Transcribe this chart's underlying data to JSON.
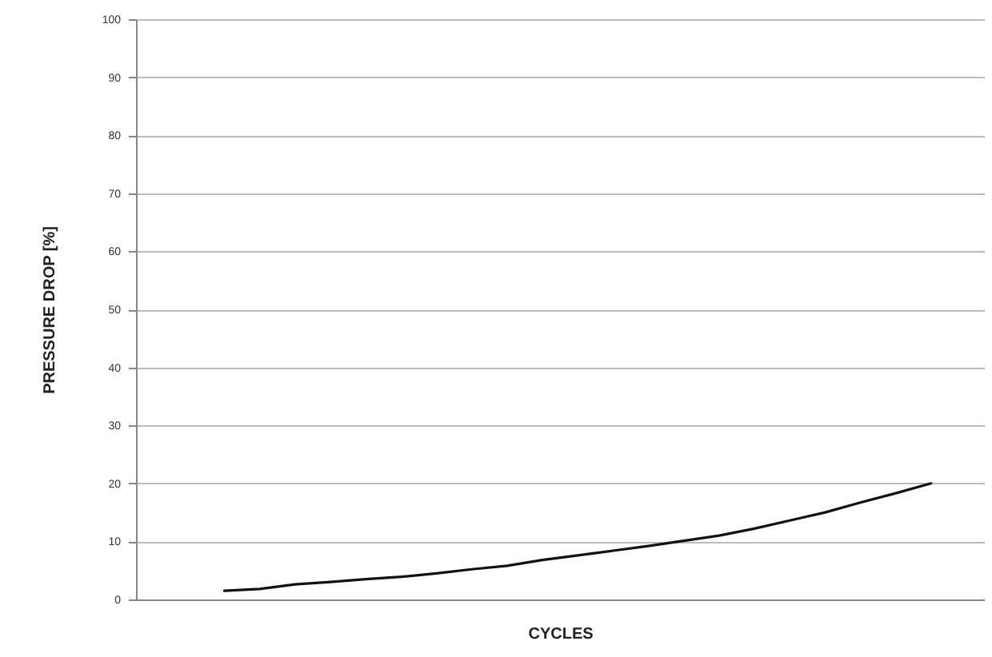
{
  "chart_data": {
    "type": "line",
    "xlabel": "CYCLES",
    "ylabel": "PRESSURE DROP [%]",
    "categories": [
      null,
      null,
      null,
      null,
      null,
      null,
      null,
      null,
      null,
      null,
      null,
      null,
      null,
      null,
      null,
      null,
      null,
      null,
      null,
      null,
      null,
      null,
      null,
      null
    ],
    "series": [
      {
        "color": "#111111",
        "values": [
          null,
          null,
          1.5,
          1.8,
          2.6,
          3.0,
          3.5,
          3.9,
          4.5,
          5.2,
          5.8,
          6.8,
          7.6,
          8.4,
          9.2,
          10.1,
          11.0,
          12.2,
          13.6,
          15.0,
          16.7,
          18.3,
          20.0,
          null
        ]
      }
    ],
    "ylim": [
      0,
      100
    ],
    "yticks": [
      0,
      10,
      20,
      30,
      40,
      50,
      60,
      70,
      80,
      90,
      100
    ],
    "grid": "y",
    "tick_labels": "y",
    "marker": "none",
    "line_style": "solid"
  }
}
